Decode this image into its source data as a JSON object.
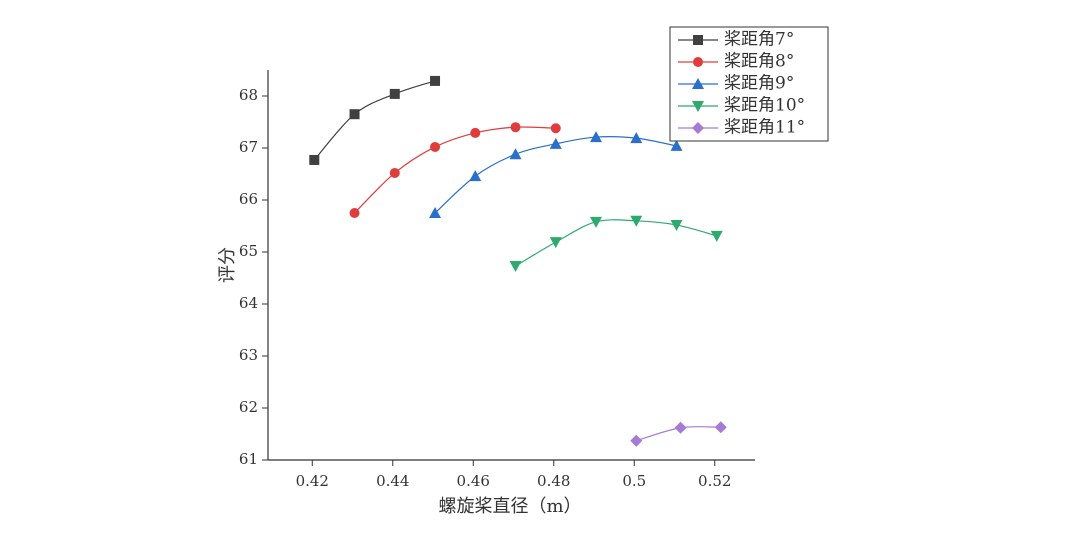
{
  "chart_data": {
    "type": "line",
    "x_label": "螺旋桨直径（m）",
    "y_label": "评分",
    "xlim": [
      0.409,
      0.53
    ],
    "xticks": [
      0.42,
      0.44,
      0.46,
      0.48,
      0.5,
      0.52
    ],
    "ylim": [
      61,
      68.5
    ],
    "yticks": [
      61,
      62,
      63,
      64,
      65,
      66,
      67,
      68
    ],
    "legend": "top-right",
    "series": [
      {
        "name": "桨距角7°",
        "color": "#404040",
        "marker": "square",
        "x": [
          0.4205,
          0.4305,
          0.4405,
          0.4505
        ],
        "values": [
          66.77,
          67.65,
          68.04,
          68.29
        ]
      },
      {
        "name": "桨距角8°",
        "color": "#e03c3c",
        "marker": "circle",
        "x": [
          0.4305,
          0.4405,
          0.4505,
          0.4605,
          0.4705,
          0.4805
        ],
        "values": [
          65.75,
          66.52,
          67.02,
          67.29,
          67.4,
          67.38
        ]
      },
      {
        "name": "桨距角9°",
        "color": "#2a6fc9",
        "marker": "triangle-up",
        "x": [
          0.4505,
          0.4605,
          0.4705,
          0.4805,
          0.4905,
          0.5005,
          0.5105
        ],
        "values": [
          65.75,
          66.46,
          66.88,
          67.08,
          67.21,
          67.19,
          67.04
        ]
      },
      {
        "name": "桨距角10°",
        "color": "#2eaa6e",
        "marker": "triangle-down",
        "x": [
          0.4705,
          0.4805,
          0.4905,
          0.5005,
          0.5105,
          0.5205
        ],
        "values": [
          64.73,
          65.19,
          65.58,
          65.6,
          65.52,
          65.31
        ]
      },
      {
        "name": "桨距角11°",
        "color": "#a77ad6",
        "marker": "diamond",
        "x": [
          0.5005,
          0.5115,
          0.5215
        ],
        "values": [
          61.37,
          61.62,
          61.63
        ]
      }
    ]
  }
}
